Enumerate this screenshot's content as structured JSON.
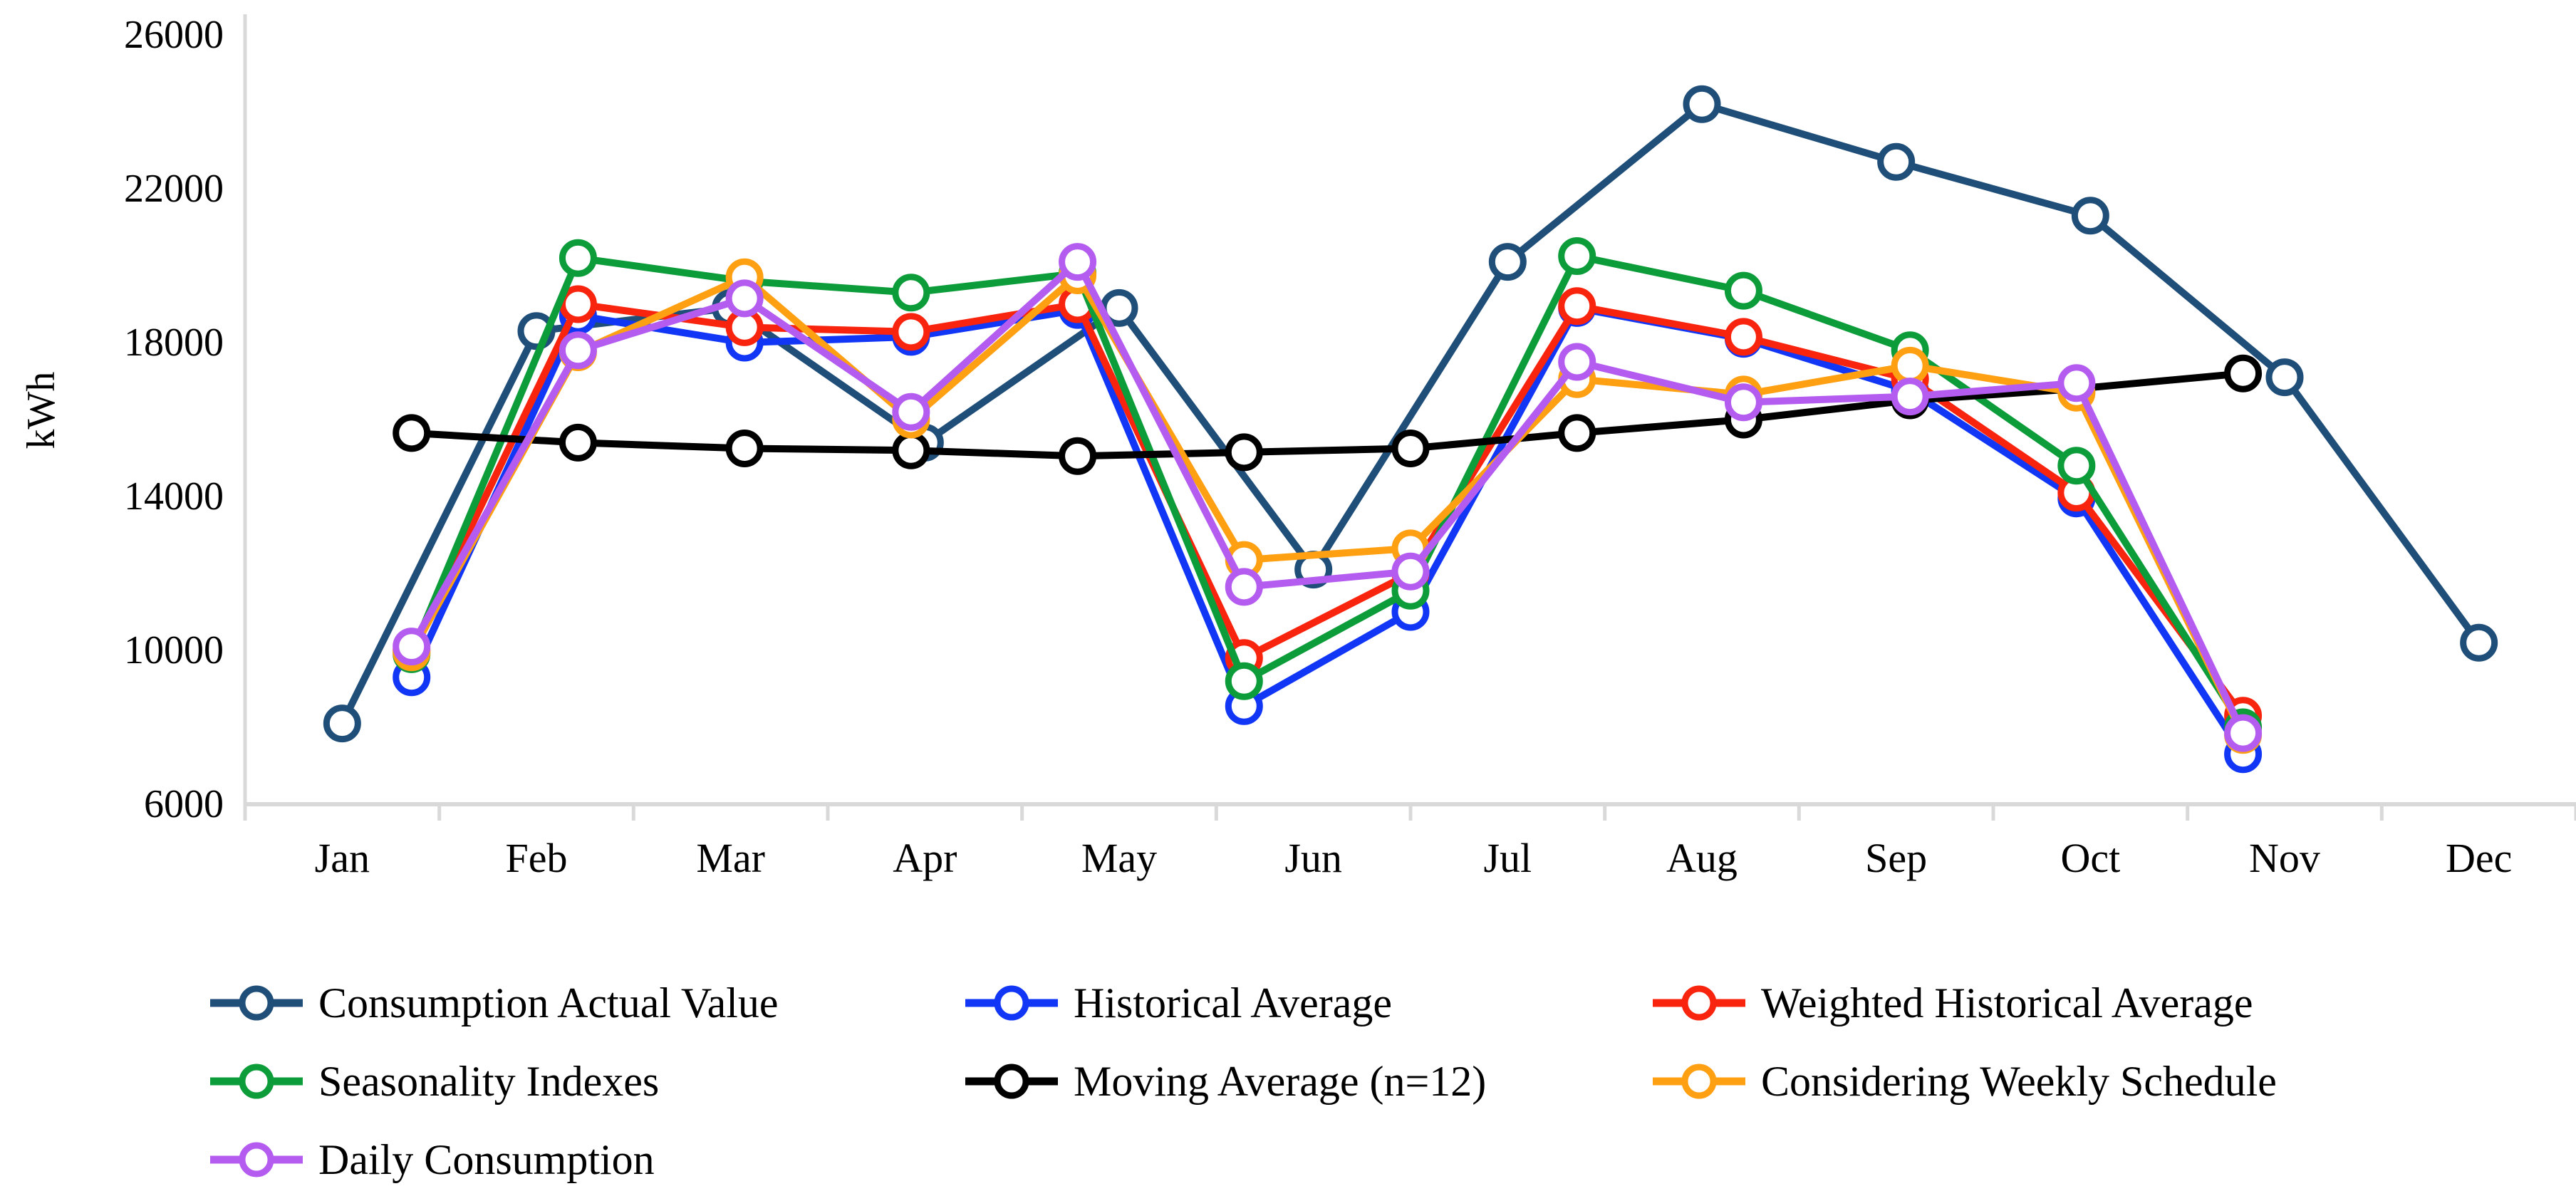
{
  "chart_data": {
    "type": "line",
    "title": "",
    "ylabel": "kWh",
    "x_categories": [
      "Jan",
      "Feb",
      "Mar",
      "Apr",
      "May",
      "Jun",
      "Jul",
      "Aug",
      "Sep",
      "Oct",
      "Nov",
      "Dec"
    ],
    "y_axis": {
      "min": 6000,
      "max": 26000,
      "step": 4000,
      "tick_labels": [
        "6000",
        "10000",
        "14000",
        "18000",
        "22000",
        "26000"
      ]
    },
    "axis_color": "#D9D9D9",
    "grid": "off",
    "legend_position": "bottom",
    "series": [
      {
        "name": "Consumption Actual Value",
        "color": "#1F4E79",
        "x_mode": "month_centers_12",
        "values": [
          8100,
          18300,
          18900,
          15400,
          18900,
          12100,
          20100,
          24200,
          22700,
          21300,
          17100,
          10200
        ]
      },
      {
        "name": "Historical Average",
        "color": "#1236F5",
        "x_mode": "period_14",
        "values": [
          9300,
          18700,
          18000,
          18150,
          18850,
          8550,
          11000,
          18900,
          18100,
          16750,
          13950,
          7300
        ]
      },
      {
        "name": "Weighted Historical Average",
        "color": "#F8240E",
        "x_mode": "period_14",
        "values": [
          10000,
          19000,
          18400,
          18280,
          19000,
          9800,
          12000,
          18950,
          18150,
          17050,
          14100,
          8300
        ]
      },
      {
        "name": "Seasonality Indexes",
        "color": "#0C9C3A",
        "x_mode": "period_14",
        "values": [
          9900,
          20200,
          19600,
          19300,
          19800,
          9200,
          11550,
          20250,
          19350,
          17800,
          14800,
          8000
        ]
      },
      {
        "name": "Moving Average (n=12)",
        "color": "#000000",
        "x_mode": "period_14",
        "values": [
          15650,
          15400,
          15250,
          15200,
          15050,
          15150,
          15250,
          15650,
          16000,
          16500,
          16800,
          17200
        ]
      },
      {
        "name": "Considering Weekly Schedule",
        "color": "#FFA013",
        "x_mode": "period_14",
        "values": [
          9950,
          17750,
          19700,
          16000,
          19750,
          12350,
          12650,
          17050,
          16650,
          17400,
          16700,
          7800
        ]
      },
      {
        "name": "Daily Consumption",
        "color": "#B45CEF",
        "x_mode": "period_14",
        "values": [
          10100,
          17800,
          19150,
          16200,
          20100,
          11650,
          12050,
          17500,
          16450,
          16600,
          16950,
          7850
        ]
      }
    ],
    "legend_rows": [
      [
        "Consumption Actual Value",
        "Historical Average",
        "Weighted Historical Average"
      ],
      [
        "Seasonality Indexes",
        "Moving Average (n=12)",
        "Considering Weekly Schedule"
      ],
      [
        "Daily Consumption"
      ]
    ]
  }
}
